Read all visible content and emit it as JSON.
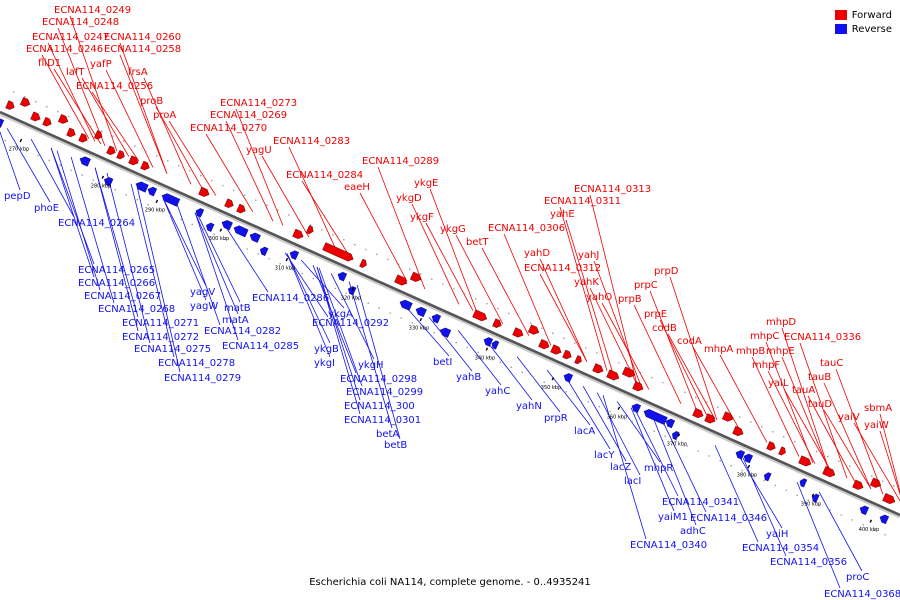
{
  "legend": [
    {
      "label": "Forward",
      "color": "#ee0000"
    },
    {
      "label": "Reverse",
      "color": "#1111ee"
    }
  ],
  "caption": "Escherichia coli NA114, complete genome. - 0..4935241",
  "colors": {
    "forward": "#ee0000",
    "reverse": "#1111ee",
    "backbone": "#888888"
  },
  "ticks": [
    "270 kbp",
    "280 kbp",
    "290 kbp",
    "300 kbp",
    "310 kbp",
    "320 kbp",
    "330 kbp",
    "340 kbp",
    "350 kbp",
    "360 kbp",
    "370 kbp",
    "380 kbp",
    "390 kbp",
    "400 kbp"
  ],
  "forward_labels": [
    "ECNA114_0249",
    "ECNA114_0248",
    "ECNA114_0247",
    "ECNA114_0260",
    "ECNA114_0246",
    "ECNA114_0258",
    "fliD1",
    "yafP",
    "lafT",
    "frsA",
    "ECNA114_0256",
    "proB",
    "proA",
    "ECNA114_0273",
    "ECNA114_0269",
    "ECNA114_0270",
    "yagU",
    "ECNA114_0283",
    "ECNA114_0284",
    "ECNA114_0289",
    "eaeH",
    "ykgE",
    "ykgD",
    "ykgF",
    "ykgG",
    "betT",
    "ECNA114_0313",
    "ECNA114_0311",
    "yahE",
    "ECNA114_0306",
    "yahD",
    "yahJ",
    "ECNA114_0312",
    "yahK",
    "yahO",
    "prpD",
    "prpC",
    "prpB",
    "prpE",
    "codB",
    "codA",
    "mhpD",
    "mhpA",
    "mhpC",
    "ECNA114_0336",
    "mhpB",
    "mhpE",
    "mhpF",
    "yaiL",
    "tauC",
    "tauB",
    "tauA",
    "tauD",
    "sbmA",
    "yaiV",
    "yaiW"
  ],
  "reverse_labels": [
    "pepD",
    "phoE",
    "ECNA114_0264",
    "ECNA114_0265",
    "ECNA114_0266",
    "ECNA114_0267",
    "ECNA114_0268",
    "yagV",
    "yagW",
    "ECNA114_0286",
    "matB",
    "ECNA114_0271",
    "matA",
    "ECNA114_0272",
    "ECNA114_0282",
    "ECNA114_0275",
    "ECNA114_0285",
    "ECNA114_0278",
    "ECNA114_0279",
    "ykgA",
    "ECNA114_0292",
    "ykgB",
    "ykgI",
    "ykgH",
    "ECNA114_0298",
    "betI",
    "ECNA114_0299",
    "ECNA114_300",
    "ECNA114_0301",
    "betA",
    "betB",
    "yahB",
    "yahC",
    "yahN",
    "prpR",
    "lacA",
    "lacY",
    "lacZ",
    "lacI",
    "mhpR",
    "ECNA114_0341",
    "yaiM1",
    "ECNA114_0346",
    "adhC",
    "ECNA114_0340",
    "yaiH",
    "ECNA114_0354",
    "ECNA114_0356",
    "proC",
    "ECNA114_0368"
  ]
}
